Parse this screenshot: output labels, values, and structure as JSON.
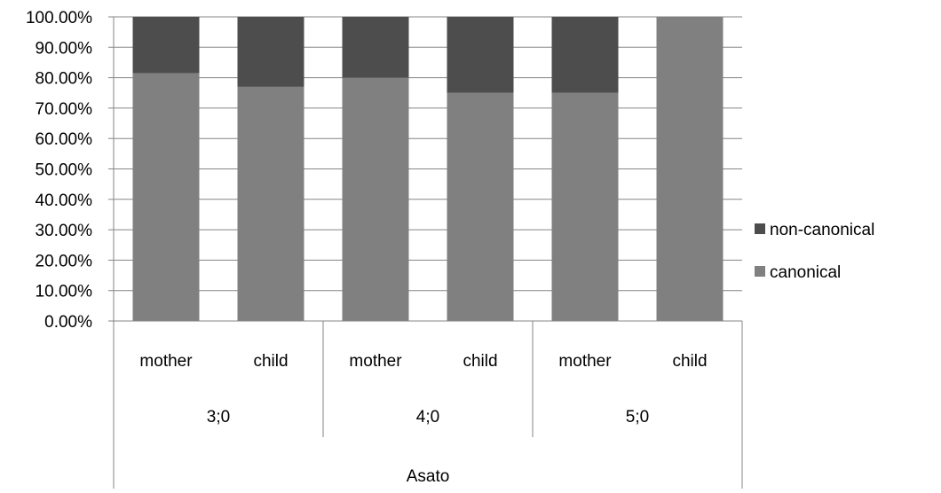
{
  "chart_data": {
    "type": "bar",
    "stacked": true,
    "percent_stacked": true,
    "categories": [
      {
        "sub": "mother",
        "group": "3;0",
        "outer": "Asato"
      },
      {
        "sub": "child",
        "group": "3;0",
        "outer": "Asato"
      },
      {
        "sub": "mother",
        "group": "4;0",
        "outer": "Asato"
      },
      {
        "sub": "child",
        "group": "4;0",
        "outer": "Asato"
      },
      {
        "sub": "mother",
        "group": "5;0",
        "outer": "Asato"
      },
      {
        "sub": "child",
        "group": "5;0",
        "outer": "Asato"
      }
    ],
    "category_levels": {
      "sub": [
        "mother",
        "child",
        "mother",
        "child",
        "mother",
        "child"
      ],
      "group": [
        "3;0",
        "4;0",
        "5;0"
      ],
      "outer": [
        "Asato"
      ]
    },
    "series": [
      {
        "name": "canonical",
        "color": "#808080",
        "values": [
          81.5,
          77.0,
          80.0,
          75.0,
          75.0,
          100.0
        ]
      },
      {
        "name": "non-canonical",
        "color": "#4d4d4d",
        "values": [
          18.5,
          23.0,
          20.0,
          25.0,
          25.0,
          0.0
        ]
      }
    ],
    "y_ticks": [
      "0.00%",
      "10.00%",
      "20.00%",
      "30.00%",
      "40.00%",
      "50.00%",
      "60.00%",
      "70.00%",
      "80.00%",
      "90.00%",
      "100.00%"
    ],
    "ylim": [
      0,
      100
    ],
    "grid": true,
    "legend": {
      "position": "right",
      "entries": [
        {
          "label": "non-canonical",
          "color": "#4d4d4d"
        },
        {
          "label": "canonical",
          "color": "#808080"
        }
      ]
    },
    "title": "",
    "xlabel": "",
    "ylabel": ""
  }
}
